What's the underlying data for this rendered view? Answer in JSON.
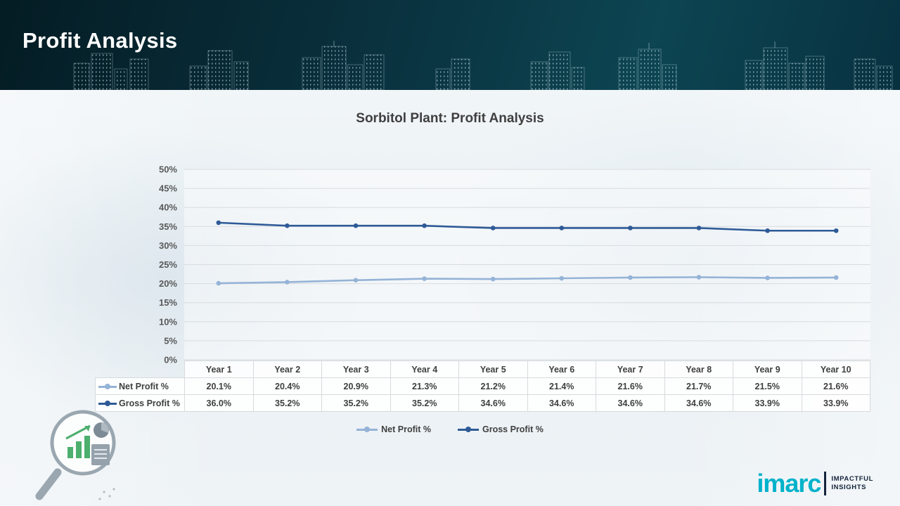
{
  "slide": {
    "title": "Profit Analysis"
  },
  "chart_data": {
    "type": "line",
    "title": "Sorbitol Plant: Profit Analysis",
    "categories": [
      "Year 1",
      "Year 2",
      "Year 3",
      "Year 4",
      "Year 5",
      "Year 6",
      "Year 7",
      "Year 8",
      "Year 9",
      "Year 10"
    ],
    "series": [
      {
        "name": "Net Profit %",
        "color": "#95b3d7",
        "values": [
          20.1,
          20.4,
          20.9,
          21.3,
          21.2,
          21.4,
          21.6,
          21.7,
          21.5,
          21.6
        ]
      },
      {
        "name": "Gross Profit %",
        "color": "#2e5b97",
        "values": [
          36.0,
          35.2,
          35.2,
          35.2,
          34.6,
          34.6,
          34.6,
          34.6,
          33.9,
          33.9
        ]
      }
    ],
    "ylim": [
      0,
      50
    ],
    "ytick_step": 5,
    "ytick_labels": [
      "0%",
      "5%",
      "10%",
      "15%",
      "20%",
      "25%",
      "30%",
      "35%",
      "40%",
      "45%",
      "50%"
    ],
    "grid": true,
    "legend_position": "bottom"
  },
  "table": {
    "header": [
      "Year 1",
      "Year 2",
      "Year 3",
      "Year 4",
      "Year 5",
      "Year 6",
      "Year 7",
      "Year 8",
      "Year 9",
      "Year 10"
    ],
    "rows": [
      {
        "label": "Net Profit %",
        "values": [
          "20.1%",
          "20.4%",
          "20.9%",
          "21.3%",
          "21.2%",
          "21.4%",
          "21.6%",
          "21.7%",
          "21.5%",
          "21.6%"
        ]
      },
      {
        "label": "Gross Profit %",
        "values": [
          "36.0%",
          "35.2%",
          "35.2%",
          "35.2%",
          "34.6%",
          "34.6%",
          "34.6%",
          "34.6%",
          "33.9%",
          "33.9%"
        ]
      }
    ]
  },
  "legend": {
    "items": [
      {
        "label": "Net Profit %",
        "color": "#95b3d7"
      },
      {
        "label": "Gross Profit %",
        "color": "#2e5b97"
      }
    ]
  },
  "branding": {
    "logo_text": "imarc",
    "tagline_line1": "IMPACTFUL",
    "tagline_line2": "INSIGHTS",
    "logo_color": "#00b2cb"
  }
}
